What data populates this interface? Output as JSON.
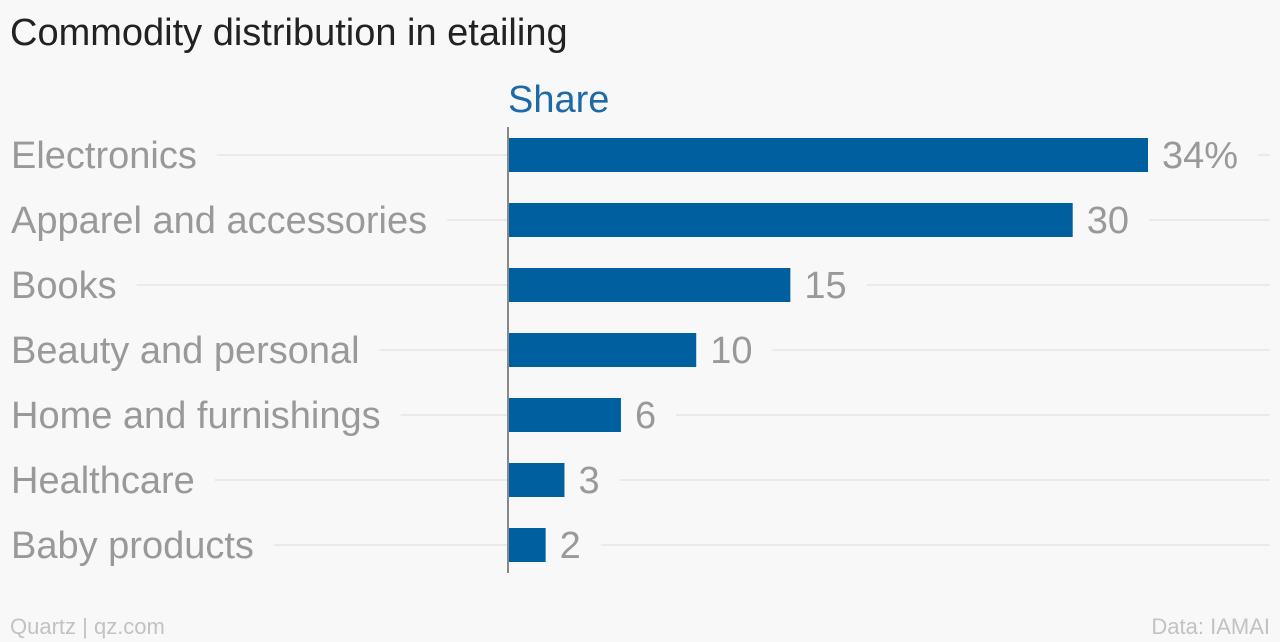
{
  "title": "Commodity distribution in etailing",
  "footer": {
    "source_left": "Quartz | qz.com",
    "source_right": "Data: IAMAI"
  },
  "colors": {
    "bar": "#005f9e",
    "series_label": "#1e6aa6",
    "category_text": "#999999",
    "value_text": "#999999",
    "gridline": "#e6e6e6",
    "axis": "#888888"
  },
  "chart_data": {
    "type": "bar",
    "orientation": "horizontal",
    "title": "Commodity distribution in etailing",
    "series": [
      {
        "name": "Share",
        "values": [
          34,
          30,
          15,
          10,
          6,
          3,
          2
        ]
      }
    ],
    "categories": [
      "Electronics",
      "Apparel and accessories",
      "Books",
      "Beauty and personal",
      "Home and furnishings",
      "Healthcare",
      "Baby products"
    ],
    "value_labels": [
      "34%",
      "30",
      "15",
      "10",
      "6",
      "3",
      "2"
    ],
    "xlim": [
      0,
      34
    ],
    "grid": false
  }
}
